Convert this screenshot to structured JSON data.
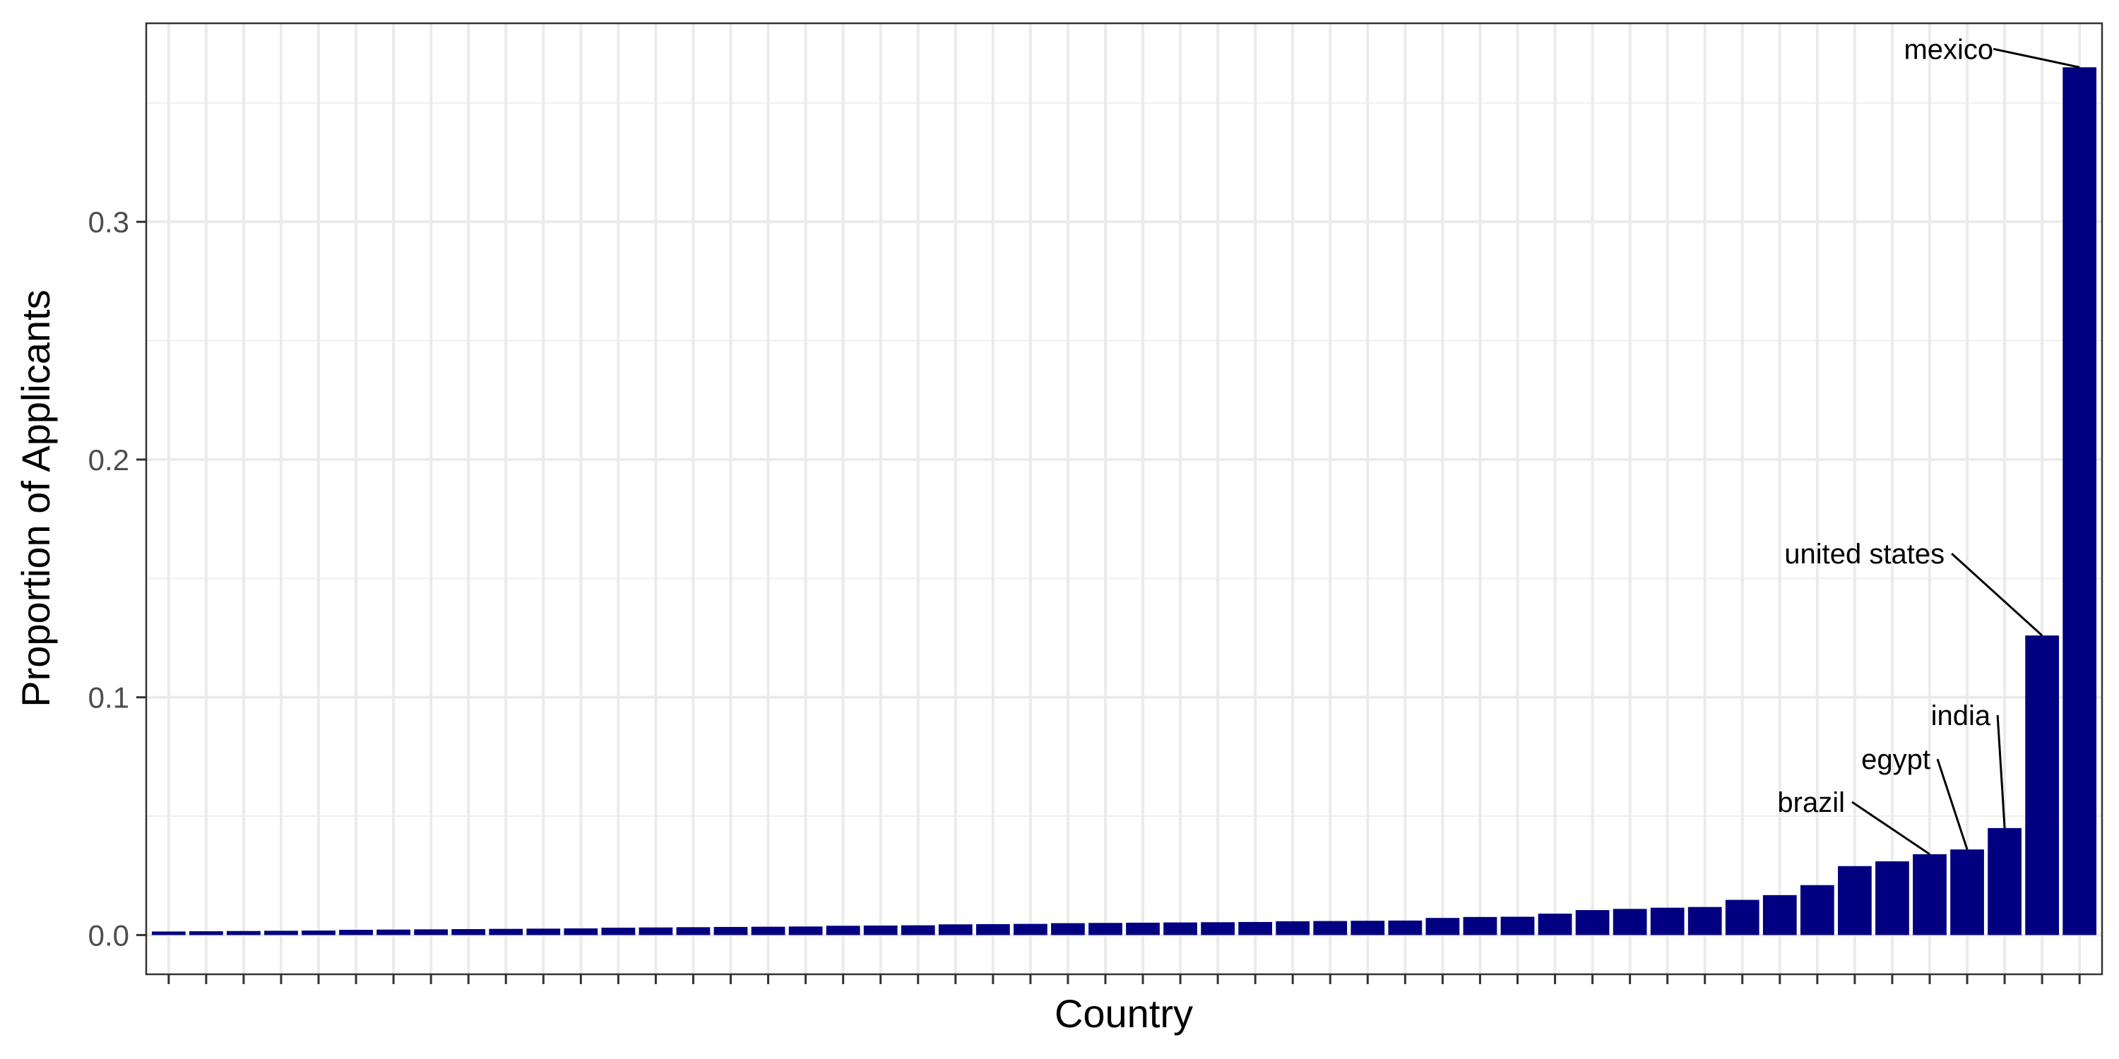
{
  "chart_data": {
    "type": "bar",
    "title": "",
    "xlabel": "Country",
    "ylabel": "Proportion of Applicants",
    "ylim": [
      -0.0165,
      0.3835
    ],
    "yticks": [
      0.0,
      0.1,
      0.2,
      0.3
    ],
    "ytick_labels": [
      "0.0",
      "0.1",
      "0.2",
      "0.3"
    ],
    "grid": true,
    "theme": "bw",
    "bar_color": "#000080",
    "categories": [
      "",
      "",
      "",
      "",
      "",
      "",
      "",
      "",
      "",
      "",
      "",
      "",
      "",
      "",
      "",
      "",
      "",
      "",
      "",
      "",
      "",
      "",
      "",
      "",
      "",
      "",
      "",
      "",
      "",
      "",
      "",
      "",
      "",
      "",
      "",
      "",
      "",
      "",
      "",
      "",
      "",
      "",
      "",
      "",
      "",
      "",
      "",
      "brazil",
      "egypt",
      "india",
      "united states",
      "mexico"
    ],
    "values": [
      0.0015,
      0.0016,
      0.0017,
      0.0018,
      0.0019,
      0.0022,
      0.0023,
      0.0024,
      0.0025,
      0.0026,
      0.0027,
      0.0028,
      0.0031,
      0.0032,
      0.0033,
      0.0034,
      0.0035,
      0.0036,
      0.0039,
      0.004,
      0.0041,
      0.0045,
      0.0046,
      0.0047,
      0.005,
      0.0051,
      0.0052,
      0.0053,
      0.0054,
      0.0055,
      0.0058,
      0.0059,
      0.006,
      0.0061,
      0.0072,
      0.0076,
      0.0077,
      0.009,
      0.0105,
      0.011,
      0.0115,
      0.0118,
      0.0148,
      0.0168,
      0.021,
      0.029,
      0.031,
      0.034,
      0.036,
      0.045,
      0.126,
      0.365
    ],
    "annotations": [
      {
        "label": "mexico",
        "category": "mexico"
      },
      {
        "label": "united states",
        "category": "united states"
      },
      {
        "label": "india",
        "category": "india"
      },
      {
        "label": "egypt",
        "category": "egypt"
      },
      {
        "label": "brazil",
        "category": "brazil"
      }
    ]
  }
}
